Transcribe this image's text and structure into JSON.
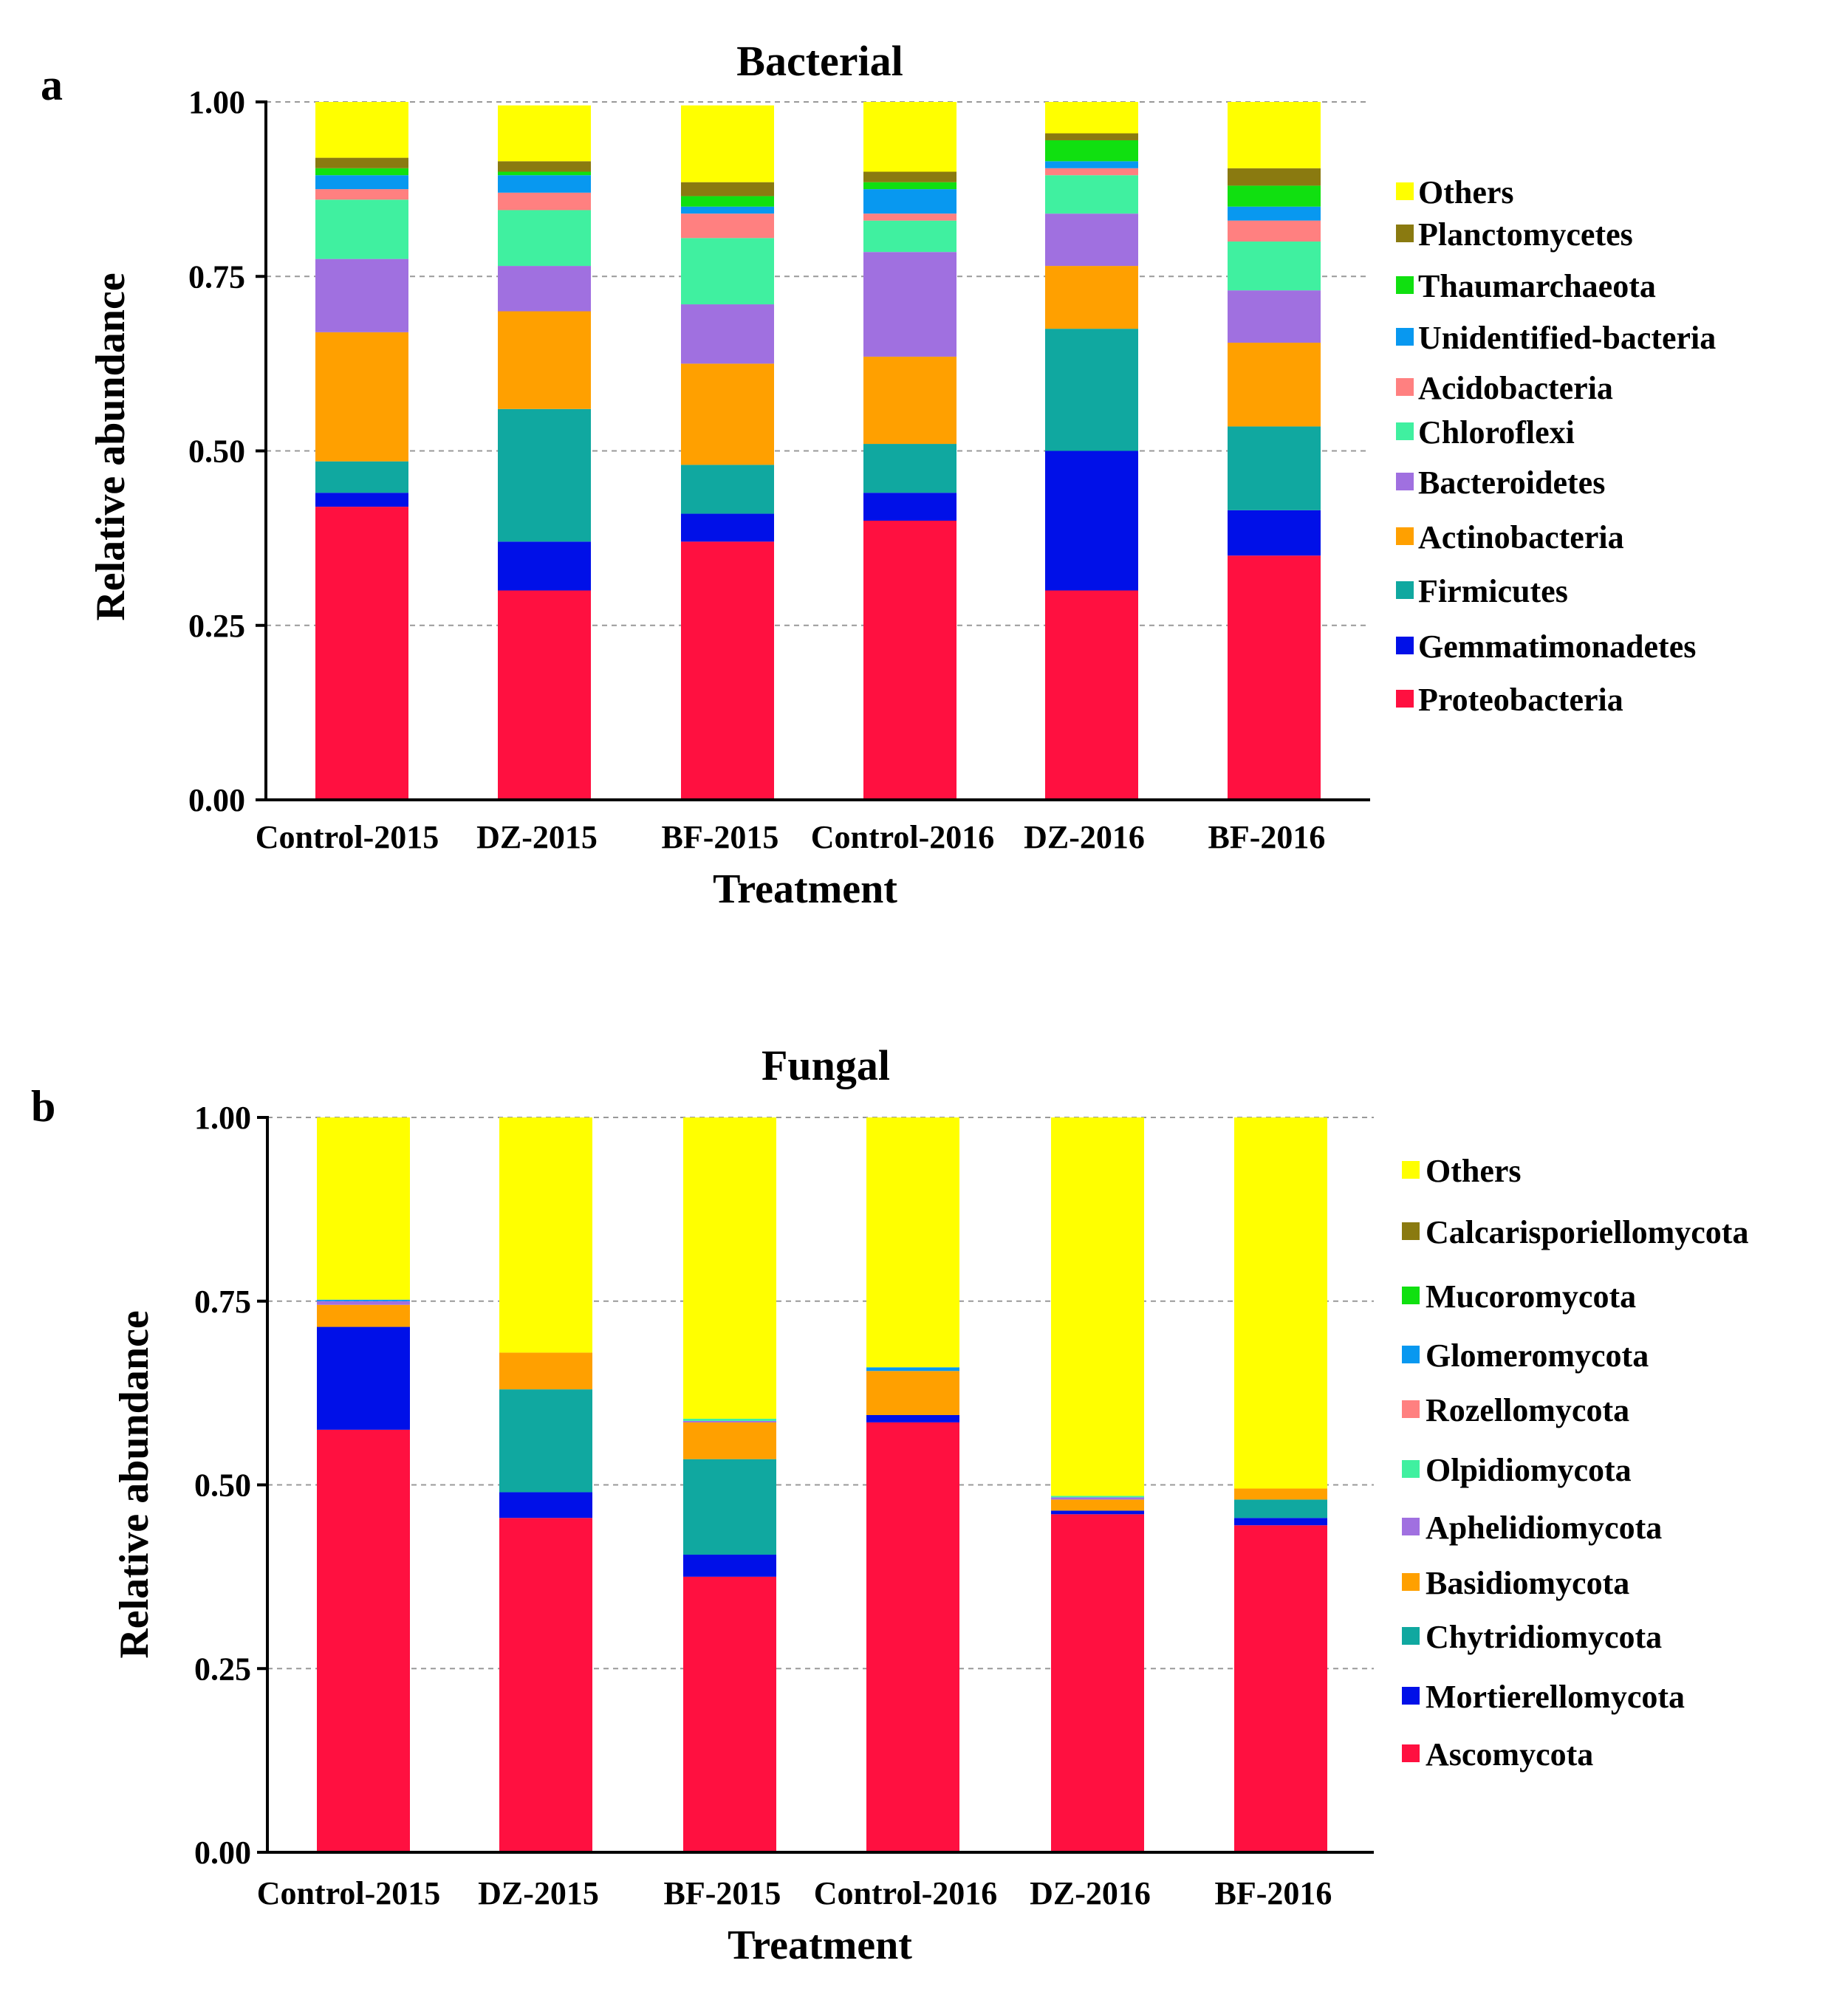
{
  "chart_data": [
    {
      "panel": "a",
      "type": "bar",
      "stacked": true,
      "title": "Bacterial",
      "xlabel": "Treatment",
      "ylabel": "Relative abundance",
      "ylim": [
        0,
        1
      ],
      "yticks": [
        "0.00",
        "0.25",
        "0.50",
        "0.75",
        "1.00"
      ],
      "categories": [
        "Control-2015",
        "DZ-2015",
        "BF-2015",
        "Control-2016",
        "DZ-2016",
        "BF-2016"
      ],
      "series": [
        {
          "name": "Proteobacteria",
          "color": "#ff1040",
          "values": [
            0.42,
            0.3,
            0.37,
            0.4,
            0.3,
            0.35
          ]
        },
        {
          "name": "Gemmatimonadetes",
          "color": "#0010e8",
          "values": [
            0.02,
            0.07,
            0.04,
            0.04,
            0.2,
            0.065
          ]
        },
        {
          "name": "Firmicutes",
          "color": "#10a8a0",
          "values": [
            0.045,
            0.19,
            0.07,
            0.07,
            0.175,
            0.12
          ]
        },
        {
          "name": "Actinobacteria",
          "color": "#ffa000",
          "values": [
            0.185,
            0.14,
            0.145,
            0.125,
            0.09,
            0.12
          ]
        },
        {
          "name": "Bacteroidetes",
          "color": "#a070e0",
          "values": [
            0.105,
            0.065,
            0.085,
            0.15,
            0.075,
            0.075
          ]
        },
        {
          "name": "Chloroflexi",
          "color": "#40f0a0",
          "values": [
            0.085,
            0.08,
            0.095,
            0.045,
            0.055,
            0.07
          ]
        },
        {
          "name": "Acidobacteria",
          "color": "#ff8080",
          "values": [
            0.015,
            0.025,
            0.035,
            0.01,
            0.01,
            0.03
          ]
        },
        {
          "name": "Unidentified-bacteria",
          "color": "#0898f0",
          "values": [
            0.02,
            0.025,
            0.01,
            0.035,
            0.01,
            0.02
          ]
        },
        {
          "name": "Thaumarchaeota",
          "color": "#10e010",
          "values": [
            0.01,
            0.005,
            0.015,
            0.01,
            0.03,
            0.03
          ]
        },
        {
          "name": "Planctomycetes",
          "color": "#8a7a10",
          "values": [
            0.015,
            0.015,
            0.02,
            0.015,
            0.01,
            0.025
          ]
        },
        {
          "name": "Others",
          "color": "#ffff00",
          "values": [
            0.08,
            0.08,
            0.11,
            0.1,
            0.045,
            0.095
          ]
        }
      ]
    },
    {
      "panel": "b",
      "type": "bar",
      "stacked": true,
      "title": "Fungal",
      "xlabel": "Treatment",
      "ylabel": "Relative abundance",
      "ylim": [
        0,
        1
      ],
      "yticks": [
        "0.00",
        "0.25",
        "0.50",
        "0.75",
        "1.00"
      ],
      "categories": [
        "Control-2015",
        "DZ-2015",
        "BF-2015",
        "Control-2016",
        "DZ-2016",
        "BF-2016"
      ],
      "series": [
        {
          "name": "Ascomycota",
          "color": "#ff1040",
          "values": [
            0.575,
            0.455,
            0.375,
            0.585,
            0.46,
            0.445
          ]
        },
        {
          "name": "Mortierellomycota",
          "color": "#0010e8",
          "values": [
            0.14,
            0.035,
            0.03,
            0.01,
            0.005,
            0.01
          ]
        },
        {
          "name": "Chytridiomycota",
          "color": "#10a8a0",
          "values": [
            0.0,
            0.14,
            0.13,
            0.0,
            0.0,
            0.025
          ]
        },
        {
          "name": "Basidiomycota",
          "color": "#ffa000",
          "values": [
            0.03,
            0.05,
            0.05,
            0.06,
            0.015,
            0.015
          ]
        },
        {
          "name": "Aphelidiomycota",
          "color": "#a070e0",
          "values": [
            0.005,
            0.0,
            0.002,
            0.0,
            0.003,
            0.0
          ]
        },
        {
          "name": "Olpidiomycota",
          "color": "#40f0a0",
          "values": [
            0.0,
            0.0,
            0.003,
            0.0,
            0.002,
            0.0
          ]
        },
        {
          "name": "Rozellomycota",
          "color": "#ff8080",
          "values": [
            0.0,
            0.0,
            0.0,
            0.0,
            0.0,
            0.0
          ]
        },
        {
          "name": "Glomeromycota",
          "color": "#0898f0",
          "values": [
            0.002,
            0.0,
            0.0,
            0.005,
            0.0,
            0.0
          ]
        },
        {
          "name": "Mucoromycota",
          "color": "#10e010",
          "values": [
            0.0,
            0.0,
            0.0,
            0.0,
            0.0,
            0.0
          ]
        },
        {
          "name": "Calcarisporiellomycota",
          "color": "#8a7a10",
          "values": [
            0.0,
            0.0,
            0.0,
            0.0,
            0.0,
            0.0
          ]
        },
        {
          "name": "Others",
          "color": "#ffff00",
          "values": [
            0.248,
            0.32,
            0.41,
            0.34,
            0.515,
            0.505
          ]
        }
      ]
    }
  ]
}
